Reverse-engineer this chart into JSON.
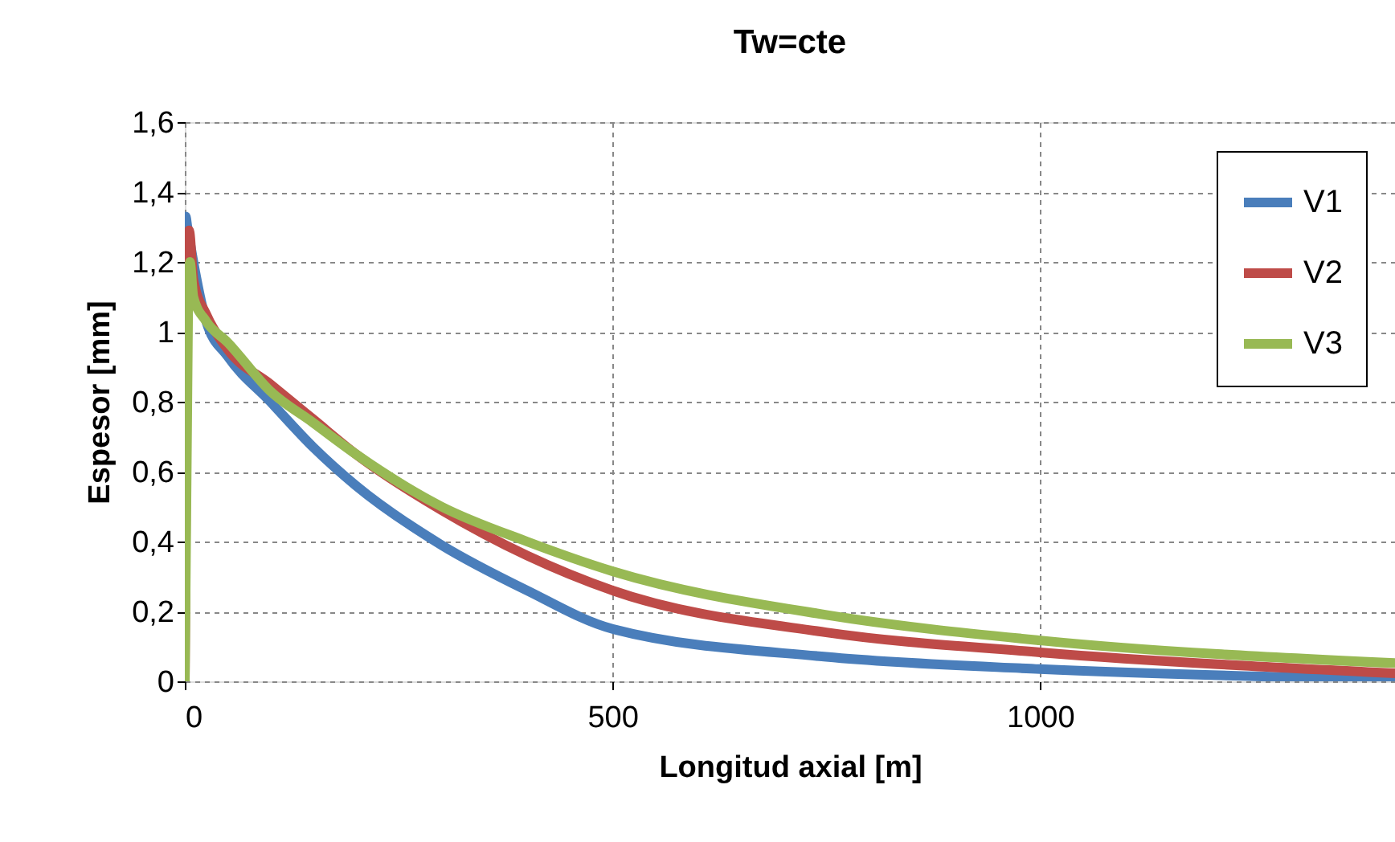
{
  "chart_data": {
    "type": "line",
    "title": "Tw=cte",
    "xlabel": "Longitud axial [m]",
    "ylabel": "Espesor [mm]",
    "xlim": [
      0,
      1415
    ],
    "xticks": [
      0,
      500,
      1000
    ],
    "ylim": [
      0,
      1.6
    ],
    "yticks": [
      0,
      {
        "value": 0.2,
        "label": "0,2"
      },
      {
        "value": 0.4,
        "label": "0,4"
      },
      {
        "value": 0.6,
        "label": "0,6"
      },
      {
        "value": 0.8,
        "label": "0,8"
      },
      1,
      {
        "value": 1.2,
        "label": "1,2"
      },
      {
        "value": 1.4,
        "label": "1,4"
      },
      {
        "value": 1.6,
        "label": "1,6"
      }
    ],
    "grid": true,
    "legend": "top right",
    "marker": "none",
    "line_style": "solid",
    "series": [
      {
        "name": "V1",
        "color": "#4a7ebb",
        "x": [
          0,
          1,
          3,
          25,
          50,
          100,
          150,
          200,
          300,
          400,
          500,
          750,
          1000,
          1415
        ],
        "values": [
          0,
          1.33,
          1.3,
          1.03,
          0.93,
          0.8,
          0.67,
          0.56,
          0.39,
          0.26,
          0.15,
          0.07,
          0.035,
          0.005
        ]
      },
      {
        "name": "V2",
        "color": "#be4b48",
        "x": [
          0,
          3,
          5,
          10,
          25,
          50,
          100,
          150,
          200,
          300,
          400,
          500,
          750,
          1000,
          1415
        ],
        "values": [
          0,
          1.25,
          1.29,
          1.15,
          1.05,
          0.95,
          0.85,
          0.75,
          0.65,
          0.49,
          0.36,
          0.26,
          0.14,
          0.083,
          0.023
        ]
      },
      {
        "name": "V3",
        "color": "#98b954",
        "x": [
          0,
          4,
          6,
          10,
          25,
          50,
          100,
          150,
          200,
          300,
          400,
          500,
          750,
          1000,
          1415
        ],
        "values": [
          0,
          1.1,
          1.2,
          1.1,
          1.03,
          0.97,
          0.83,
          0.74,
          0.65,
          0.5,
          0.4,
          0.315,
          0.19,
          0.117,
          0.052
        ]
      }
    ]
  }
}
